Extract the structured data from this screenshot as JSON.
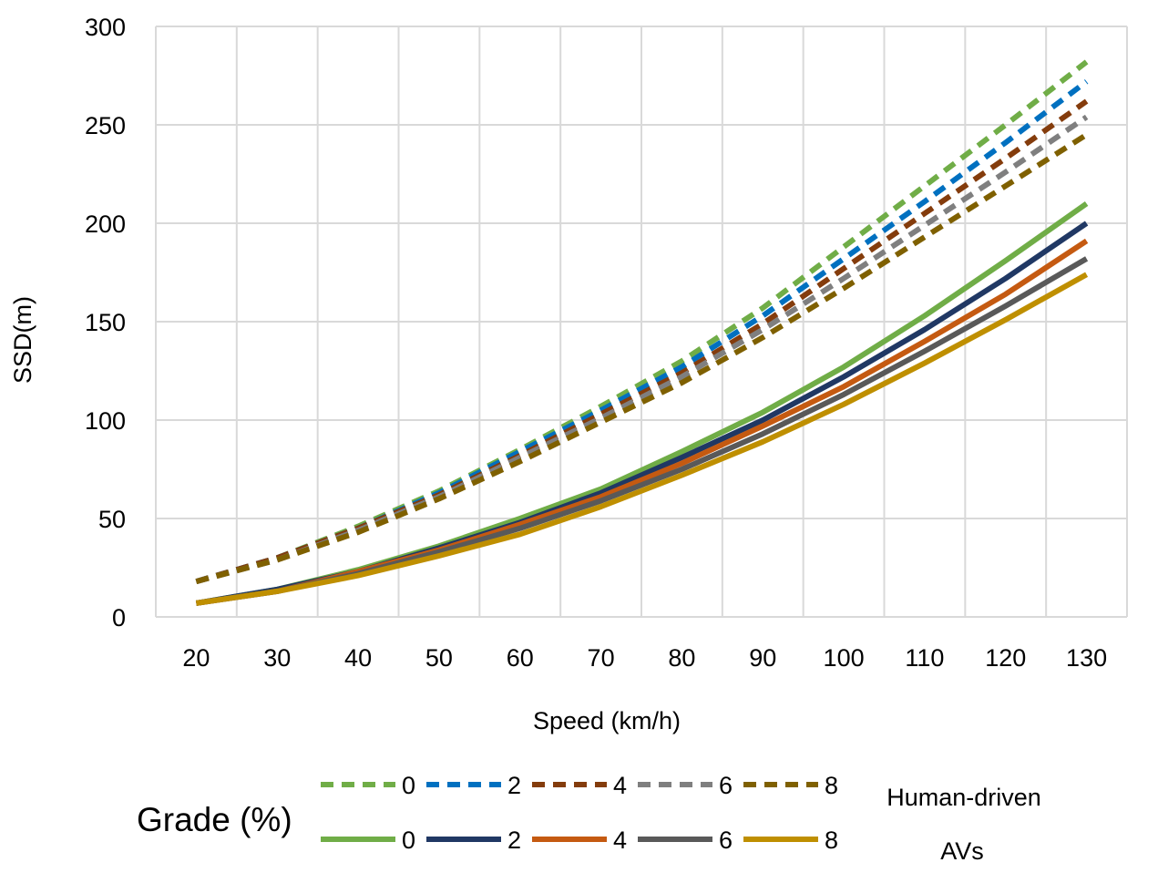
{
  "chart_data": {
    "type": "line",
    "title": "",
    "xlabel": "Speed (km/h)",
    "ylabel": "SSD(m)",
    "xlim": [
      15,
      135
    ],
    "ylim": [
      0,
      300
    ],
    "x_ticks": [
      20,
      30,
      40,
      50,
      60,
      70,
      80,
      90,
      100,
      110,
      120,
      130
    ],
    "y_ticks": [
      0,
      50,
      100,
      150,
      200,
      250,
      300
    ],
    "grid": true,
    "x": [
      20,
      30,
      40,
      50,
      60,
      70,
      80,
      90,
      100,
      110,
      120,
      130
    ],
    "legend": {
      "title": "Grade (%)",
      "group_labels": {
        "human": "Human-driven",
        "av": "AVs"
      },
      "placement": "bottom"
    },
    "series": [
      {
        "name": "0",
        "group": "human",
        "dash": true,
        "color": "#70ad47",
        "values": [
          18,
          30,
          46,
          64,
          85,
          107,
          130,
          157,
          188,
          219,
          250,
          282
        ]
      },
      {
        "name": "2",
        "group": "human",
        "dash": true,
        "color": "#0070c0",
        "values": [
          18,
          30,
          45,
          63,
          84,
          105,
          127,
          153,
          182,
          211,
          241,
          272
        ]
      },
      {
        "name": "4",
        "group": "human",
        "dash": true,
        "color": "#843c0c",
        "values": [
          18,
          30,
          45,
          62,
          82,
          103,
          124,
          149,
          177,
          205,
          233,
          262
        ]
      },
      {
        "name": "6",
        "group": "human",
        "dash": true,
        "color": "#7f7f7f",
        "values": [
          18,
          29,
          44,
          61,
          81,
          101,
          122,
          146,
          172,
          199,
          226,
          254
        ]
      },
      {
        "name": "8",
        "group": "human",
        "dash": true,
        "color": "#7f6000",
        "values": [
          18,
          29,
          43,
          60,
          79,
          99,
          119,
          142,
          167,
          193,
          219,
          245
        ]
      },
      {
        "name": "0",
        "group": "av",
        "dash": false,
        "color": "#70ad47",
        "values": [
          7,
          14,
          24,
          36,
          50,
          65,
          84,
          104,
          127,
          153,
          181,
          210
        ]
      },
      {
        "name": "2",
        "group": "av",
        "dash": false,
        "color": "#203864",
        "values": [
          7,
          14,
          23,
          35,
          48,
          63,
          81,
          100,
          122,
          146,
          172,
          200
        ]
      },
      {
        "name": "4",
        "group": "av",
        "dash": false,
        "color": "#c55a11",
        "values": [
          7,
          13,
          23,
          34,
          47,
          61,
          78,
          97,
          117,
          140,
          164,
          191
        ]
      },
      {
        "name": "6",
        "group": "av",
        "dash": false,
        "color": "#595959",
        "values": [
          7,
          13,
          22,
          33,
          45,
          59,
          75,
          93,
          113,
          135,
          158,
          182
        ]
      },
      {
        "name": "8",
        "group": "av",
        "dash": false,
        "color": "#bf8f00",
        "values": [
          7,
          13,
          21,
          31,
          42,
          56,
          72,
          89,
          108,
          129,
          151,
          174
        ]
      }
    ]
  }
}
